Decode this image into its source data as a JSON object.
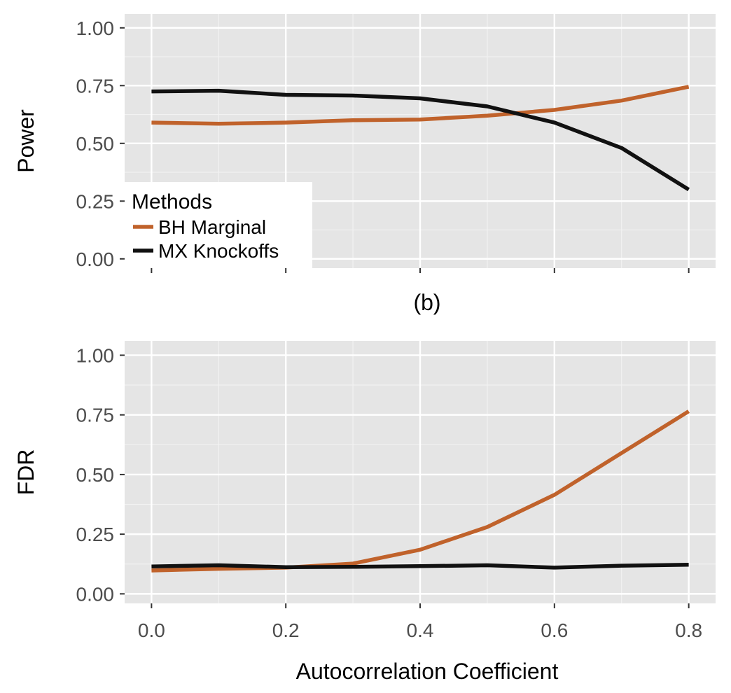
{
  "chart_data": [
    {
      "type": "line",
      "ylabel": "Power",
      "xlabel": "",
      "x": [
        0.0,
        0.1,
        0.2,
        0.3,
        0.4,
        0.5,
        0.6,
        0.7,
        0.8
      ],
      "xlim": [
        -0.04,
        0.84
      ],
      "ylim": [
        -0.04,
        1.06
      ],
      "yticks": [
        "0.00",
        "0.25",
        "0.50",
        "0.75",
        "1.00"
      ],
      "xticks": [],
      "grid": true,
      "legend": {
        "title": "Methods",
        "placement": "bottom-left"
      },
      "series": [
        {
          "name": "BH Marginal",
          "color": "#c0622b",
          "values": [
            0.59,
            0.585,
            0.59,
            0.6,
            0.603,
            0.62,
            0.645,
            0.685,
            0.745
          ]
        },
        {
          "name": "MX Knockoffs",
          "color": "#111111",
          "values": [
            0.725,
            0.728,
            0.71,
            0.707,
            0.695,
            0.66,
            0.59,
            0.48,
            0.3
          ]
        }
      ]
    },
    {
      "type": "line",
      "title": "(b)",
      "ylabel": "FDR",
      "xlabel": "Autocorrelation Coefficient",
      "x": [
        0.0,
        0.1,
        0.2,
        0.3,
        0.4,
        0.5,
        0.6,
        0.7,
        0.8
      ],
      "xlim": [
        -0.04,
        0.84
      ],
      "ylim": [
        -0.04,
        1.06
      ],
      "yticks": [
        "0.00",
        "0.25",
        "0.50",
        "0.75",
        "1.00"
      ],
      "xticks": [
        "0.0",
        "0.2",
        "0.4",
        "0.6",
        "0.8"
      ],
      "grid": true,
      "series": [
        {
          "name": "BH Marginal",
          "color": "#c0622b",
          "values": [
            0.098,
            0.105,
            0.11,
            0.127,
            0.185,
            0.28,
            0.415,
            0.59,
            0.765
          ]
        },
        {
          "name": "MX Knockoffs",
          "color": "#111111",
          "values": [
            0.115,
            0.12,
            0.112,
            0.113,
            0.116,
            0.12,
            0.11,
            0.118,
            0.122
          ]
        }
      ]
    }
  ]
}
